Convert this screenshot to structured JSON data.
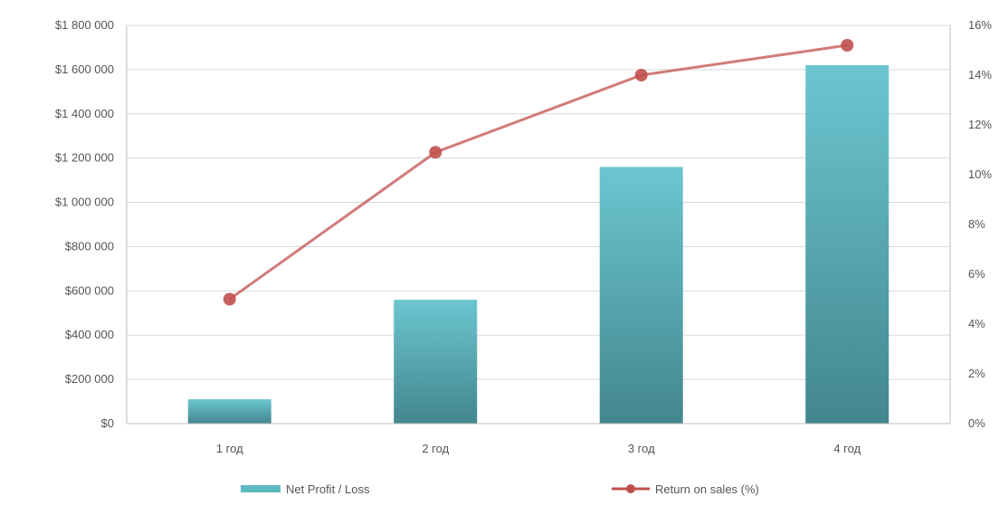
{
  "chart_data": {
    "type": "bar",
    "categories": [
      "1 год",
      "2 год",
      "3 год",
      "4 год"
    ],
    "series": [
      {
        "name": "Net Profit / Loss",
        "type": "bar",
        "axis": "left",
        "values": [
          110000,
          560000,
          1160000,
          1620000
        ],
        "color": "#4fa8b3"
      },
      {
        "name": "Return on sales (%)",
        "type": "line",
        "axis": "right",
        "values": [
          5.0,
          10.9,
          14.0,
          15.2
        ],
        "color": "#c0504d"
      }
    ],
    "y_left": {
      "ylim": [
        0,
        1800000
      ],
      "ticks": [
        0,
        200000,
        400000,
        600000,
        800000,
        1000000,
        1200000,
        1400000,
        1600000,
        1800000
      ],
      "tick_labels": [
        "$0",
        "$200 000",
        "$400 000",
        "$600 000",
        "$800 000",
        "$1 000 000",
        "$1 200 000",
        "$1 400 000",
        "$1 600 000",
        "$1 800 000"
      ]
    },
    "y_right": {
      "ylim": [
        0,
        16
      ],
      "ticks": [
        0,
        2,
        4,
        6,
        8,
        10,
        12,
        14,
        16
      ],
      "tick_labels": [
        "0%",
        "2%",
        "4%",
        "6%",
        "8%",
        "10%",
        "12%",
        "14%",
        "16%"
      ]
    },
    "grid": true,
    "legend_position": "bottom"
  }
}
